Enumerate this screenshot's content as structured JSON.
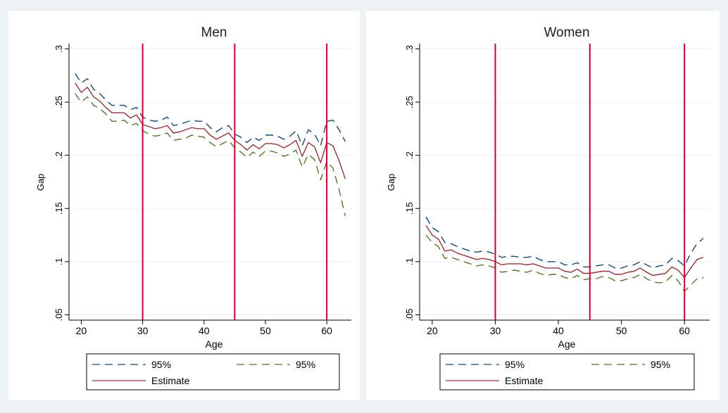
{
  "figure": {
    "background": "#eaf2f3",
    "panel_background": "#ffffff"
  },
  "colors": {
    "upper": "#1a476f",
    "lower": "#55752f",
    "estimate": "#90353b",
    "vline": "#c10534",
    "grid": "#eaf2f3"
  },
  "chart_data": [
    {
      "type": "line",
      "title": "Men",
      "xlabel": "Age",
      "ylabel": "Gap",
      "xlim": [
        18,
        64
      ],
      "ylim": [
        0.045,
        0.305
      ],
      "xticks": [
        20,
        30,
        40,
        50,
        60
      ],
      "yticks": [
        0.05,
        0.1,
        0.15,
        0.2,
        0.25,
        0.3
      ],
      "ytick_labels": [
        ".05",
        ".1",
        ".15",
        ".2",
        ".25",
        ".3"
      ],
      "grid": true,
      "vlines": [
        30,
        45,
        60
      ],
      "legend": {
        "position": "bottom",
        "entries": [
          "95%",
          "95%",
          "Estimate"
        ]
      },
      "x": [
        19,
        20,
        21,
        22,
        23,
        24,
        25,
        26,
        27,
        28,
        29,
        30,
        31,
        32,
        33,
        34,
        35,
        36,
        37,
        38,
        39,
        40,
        41,
        42,
        43,
        44,
        45,
        46,
        47,
        48,
        49,
        50,
        51,
        52,
        53,
        54,
        55,
        56,
        57,
        58,
        59,
        60,
        61,
        62,
        63
      ],
      "series": [
        {
          "name": "95%",
          "style": "dash",
          "color_key": "upper",
          "values": [
            0.277,
            0.268,
            0.272,
            0.262,
            0.258,
            0.252,
            0.247,
            0.247,
            0.247,
            0.243,
            0.245,
            0.236,
            0.233,
            0.232,
            0.233,
            0.236,
            0.228,
            0.229,
            0.231,
            0.233,
            0.232,
            0.232,
            0.226,
            0.222,
            0.226,
            0.228,
            0.22,
            0.217,
            0.212,
            0.217,
            0.214,
            0.219,
            0.219,
            0.218,
            0.215,
            0.218,
            0.223,
            0.209,
            0.224,
            0.22,
            0.209,
            0.232,
            0.233,
            0.224,
            0.213
          ]
        },
        {
          "name": "95%",
          "style": "dash",
          "color_key": "lower",
          "values": [
            0.258,
            0.25,
            0.255,
            0.247,
            0.244,
            0.239,
            0.232,
            0.232,
            0.233,
            0.228,
            0.23,
            0.223,
            0.22,
            0.218,
            0.219,
            0.221,
            0.214,
            0.215,
            0.216,
            0.219,
            0.218,
            0.217,
            0.212,
            0.208,
            0.211,
            0.214,
            0.207,
            0.203,
            0.198,
            0.203,
            0.199,
            0.204,
            0.204,
            0.202,
            0.199,
            0.201,
            0.205,
            0.189,
            0.201,
            0.196,
            0.177,
            0.194,
            0.188,
            0.168,
            0.143
          ]
        },
        {
          "name": "Estimate",
          "style": "solid",
          "color_key": "estimate",
          "values": [
            0.268,
            0.259,
            0.264,
            0.255,
            0.251,
            0.245,
            0.24,
            0.24,
            0.24,
            0.235,
            0.238,
            0.229,
            0.227,
            0.225,
            0.226,
            0.228,
            0.221,
            0.222,
            0.224,
            0.226,
            0.225,
            0.225,
            0.219,
            0.215,
            0.218,
            0.221,
            0.214,
            0.21,
            0.205,
            0.21,
            0.206,
            0.211,
            0.211,
            0.21,
            0.207,
            0.21,
            0.214,
            0.199,
            0.212,
            0.208,
            0.193,
            0.212,
            0.209,
            0.195,
            0.178
          ]
        }
      ]
    },
    {
      "type": "line",
      "title": "Women",
      "xlabel": "Age",
      "ylabel": "Gap",
      "xlim": [
        18,
        64
      ],
      "ylim": [
        0.045,
        0.305
      ],
      "xticks": [
        20,
        30,
        40,
        50,
        60
      ],
      "yticks": [
        0.05,
        0.1,
        0.15,
        0.2,
        0.25,
        0.3
      ],
      "ytick_labels": [
        ".05",
        ".1",
        ".15",
        ".2",
        ".25",
        ".3"
      ],
      "grid": true,
      "vlines": [
        30,
        45,
        60
      ],
      "legend": {
        "position": "bottom",
        "entries": [
          "95%",
          "95%",
          "Estimate"
        ]
      },
      "x": [
        19,
        20,
        21,
        22,
        23,
        24,
        25,
        26,
        27,
        28,
        29,
        30,
        31,
        32,
        33,
        34,
        35,
        36,
        37,
        38,
        39,
        40,
        41,
        42,
        43,
        44,
        45,
        46,
        47,
        48,
        49,
        50,
        51,
        52,
        53,
        54,
        55,
        56,
        57,
        58,
        59,
        60,
        61,
        62,
        63
      ],
      "series": [
        {
          "name": "95%",
          "style": "dash",
          "color_key": "upper",
          "values": [
            0.142,
            0.132,
            0.128,
            0.118,
            0.117,
            0.114,
            0.112,
            0.11,
            0.109,
            0.11,
            0.109,
            0.107,
            0.104,
            0.105,
            0.105,
            0.104,
            0.104,
            0.105,
            0.102,
            0.1,
            0.1,
            0.1,
            0.097,
            0.097,
            0.099,
            0.095,
            0.095,
            0.096,
            0.097,
            0.097,
            0.094,
            0.094,
            0.096,
            0.097,
            0.1,
            0.097,
            0.094,
            0.096,
            0.097,
            0.103,
            0.101,
            0.096,
            0.108,
            0.117,
            0.122
          ]
        },
        {
          "name": "95%",
          "style": "dash",
          "color_key": "lower",
          "values": [
            0.125,
            0.118,
            0.114,
            0.103,
            0.104,
            0.102,
            0.1,
            0.098,
            0.096,
            0.097,
            0.096,
            0.094,
            0.09,
            0.091,
            0.092,
            0.091,
            0.09,
            0.092,
            0.089,
            0.087,
            0.088,
            0.088,
            0.085,
            0.084,
            0.087,
            0.083,
            0.084,
            0.084,
            0.086,
            0.085,
            0.082,
            0.082,
            0.084,
            0.085,
            0.088,
            0.084,
            0.081,
            0.08,
            0.081,
            0.087,
            0.082,
            0.072,
            0.078,
            0.084,
            0.085
          ]
        },
        {
          "name": "Estimate",
          "style": "solid",
          "color_key": "estimate",
          "values": [
            0.134,
            0.125,
            0.121,
            0.11,
            0.111,
            0.108,
            0.106,
            0.104,
            0.102,
            0.103,
            0.102,
            0.1,
            0.097,
            0.098,
            0.098,
            0.098,
            0.097,
            0.098,
            0.096,
            0.094,
            0.094,
            0.094,
            0.091,
            0.09,
            0.093,
            0.089,
            0.089,
            0.09,
            0.091,
            0.091,
            0.088,
            0.088,
            0.09,
            0.091,
            0.094,
            0.09,
            0.087,
            0.088,
            0.089,
            0.095,
            0.092,
            0.085,
            0.094,
            0.102,
            0.104
          ]
        }
      ]
    }
  ]
}
